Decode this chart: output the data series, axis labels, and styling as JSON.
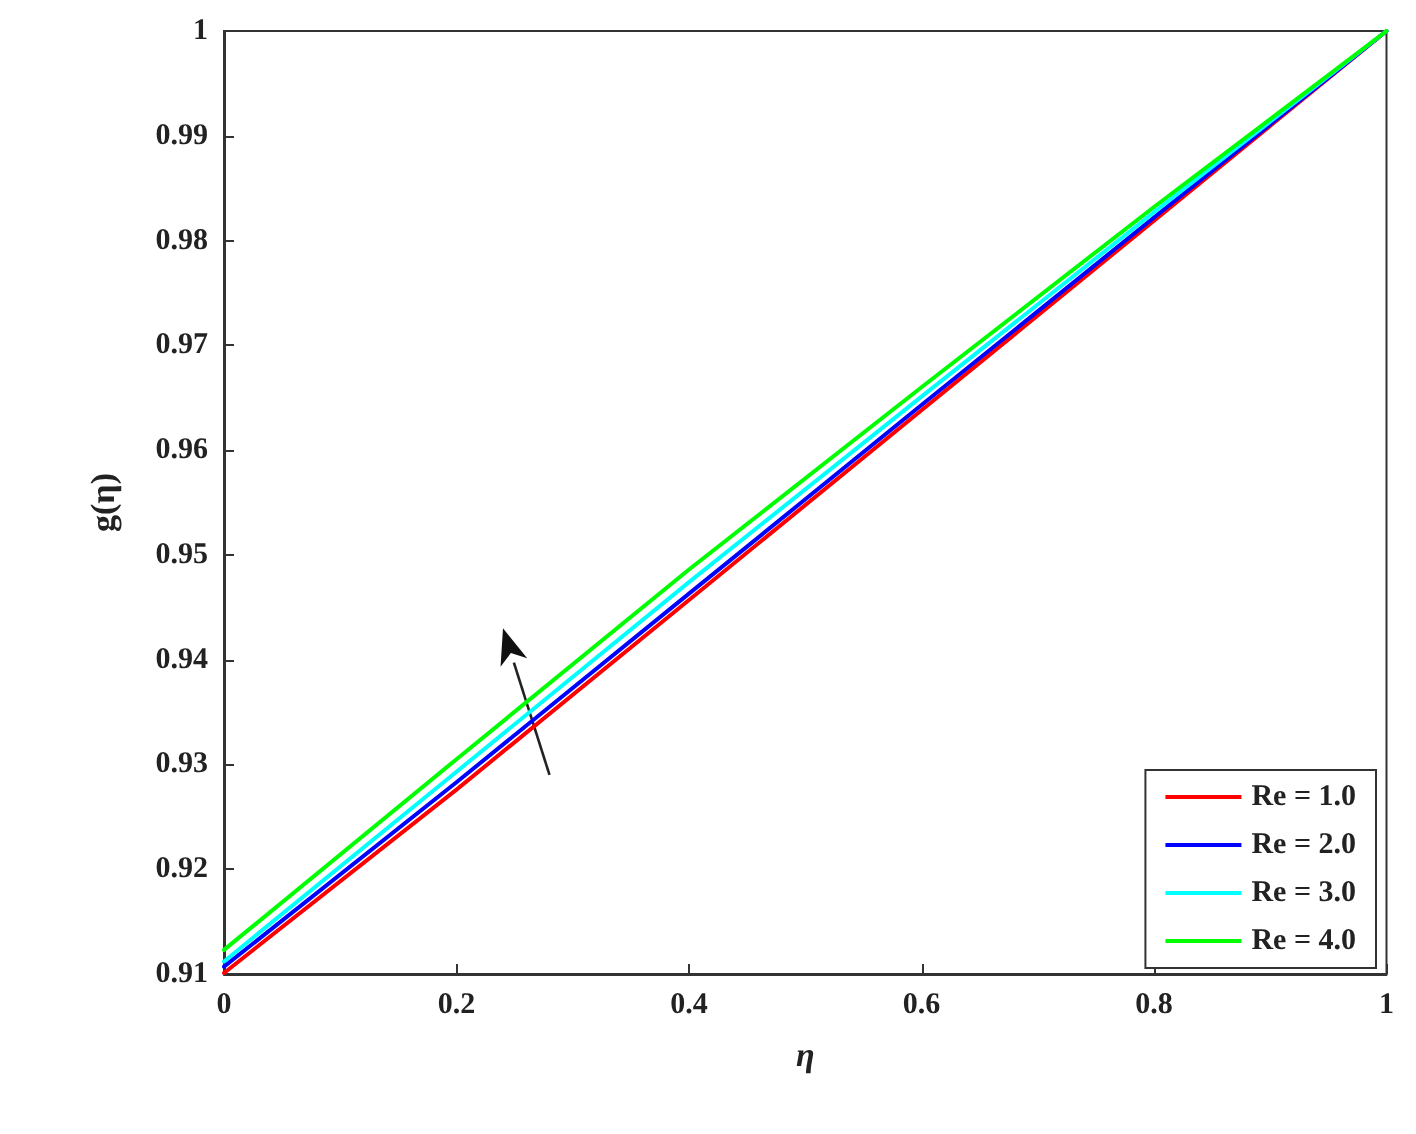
{
  "chart_data": {
    "type": "line",
    "xlabel": "η",
    "ylabel": "g(η)",
    "x": [
      0,
      0.2,
      0.4,
      0.6,
      0.8,
      1
    ],
    "series": [
      {
        "name": "Re = 1.0",
        "color": "#ff0000",
        "values": [
          0.9101,
          0.9276,
          0.9457,
          0.9638,
          0.9819,
          1
        ]
      },
      {
        "name": "Re = 2.0",
        "color": "#0000ff",
        "values": [
          0.9107,
          0.9283,
          0.9463,
          0.9643,
          0.9822,
          1
        ]
      },
      {
        "name": "Re = 3.0",
        "color": "#00ffff",
        "values": [
          0.9112,
          0.9293,
          0.9474,
          0.9651,
          0.9827,
          1
        ]
      },
      {
        "name": "Re = 4.0",
        "color": "#00ff00",
        "values": [
          0.9123,
          0.9305,
          0.9486,
          0.966,
          0.9832,
          1
        ]
      }
    ],
    "xlim": [
      0,
      1
    ],
    "xticks": [
      0,
      0.2,
      0.4,
      0.6,
      0.8,
      1
    ],
    "ylim": [
      0.91,
      1
    ],
    "yticks": [
      0.91,
      0.92,
      0.93,
      0.94,
      0.95,
      0.96,
      0.97,
      0.98,
      0.99,
      1
    ],
    "legend": "bottom right",
    "grid": false,
    "marker": "none",
    "line_style": "solid"
  }
}
